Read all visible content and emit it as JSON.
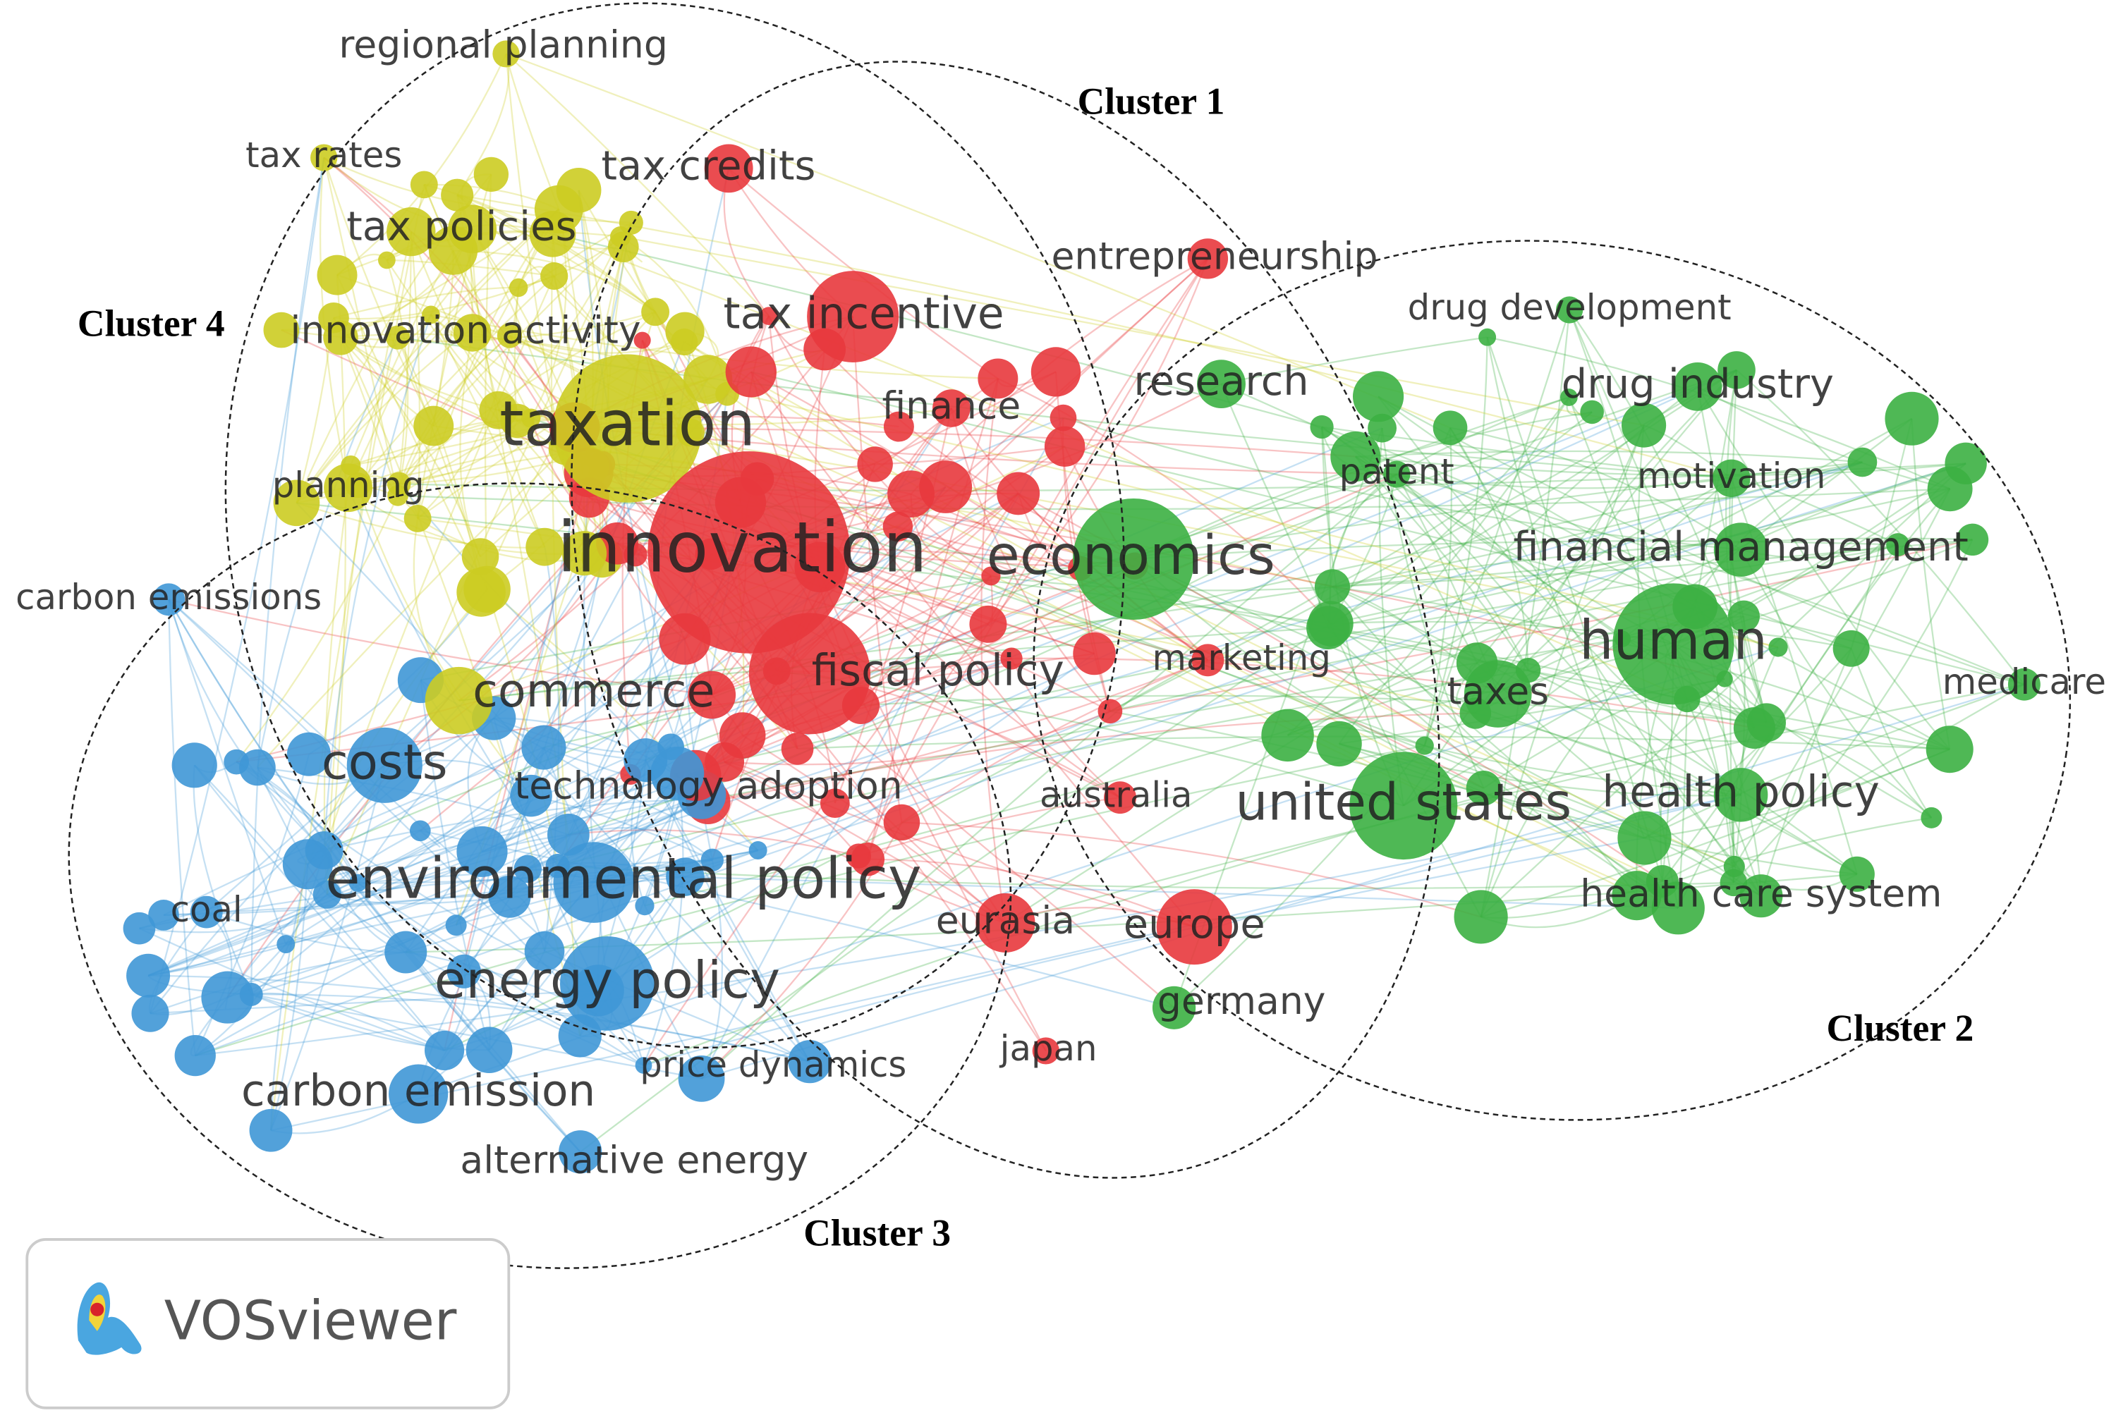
{
  "clusters": [
    {
      "label": "Cluster 1",
      "nodes": [
        "innovation",
        "tax incentive",
        "tax credits",
        "fiscal policy",
        "entrepreneurship",
        "finance",
        "marketing",
        "australia",
        "eurasia",
        "europe",
        "japan"
      ]
    },
    {
      "label": "Cluster 2",
      "nodes": [
        "economics",
        "research",
        "drug development",
        "drug industry",
        "patent",
        "motivation",
        "financial management",
        "human",
        "medicare",
        "taxes",
        "united states",
        "health policy",
        "health care system",
        "germany"
      ]
    },
    {
      "label": "Cluster 3",
      "nodes": [
        "carbon emissions",
        "costs",
        "technology adoption",
        "environmental policy",
        "coal",
        "energy policy",
        "price dynamics",
        "carbon emission",
        "alternative energy"
      ]
    },
    {
      "label": "Cluster 4",
      "nodes": [
        "regional planning",
        "tax rates",
        "tax policies",
        "innovation activity",
        "taxation",
        "planning",
        "commerce"
      ]
    }
  ],
  "logo": {
    "text": "VOSviewer"
  }
}
